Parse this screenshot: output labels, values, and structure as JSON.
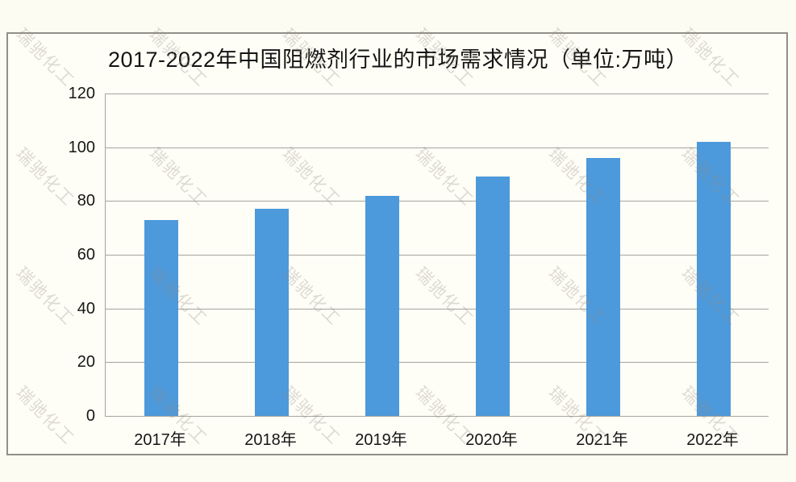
{
  "watermark": {
    "text": "瑞驰化工"
  },
  "chart_data": {
    "type": "bar",
    "title": "2017-2022年中国阻燃剂行业的市场需求情况（单位:万吨）",
    "categories": [
      "2017年",
      "2018年",
      "2019年",
      "2020年",
      "2021年",
      "2022年"
    ],
    "values": [
      73,
      77,
      82,
      89,
      96,
      102
    ],
    "xlabel": "",
    "ylabel": "",
    "unit": "万吨",
    "ylim": [
      0,
      120
    ],
    "yticks": [
      0,
      20,
      40,
      60,
      80,
      100,
      120
    ],
    "grid": true,
    "legend": "none",
    "bar_color": "#4C99DB",
    "grid_color": "#a6a49c",
    "frame_border_color": "#918f88",
    "background_color": "#fffef6"
  }
}
